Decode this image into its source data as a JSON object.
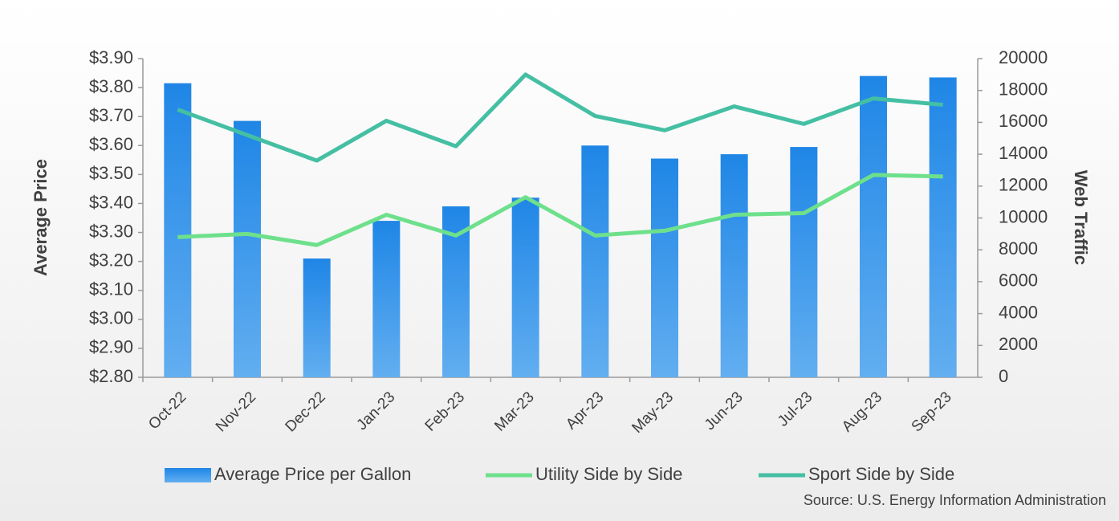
{
  "chart_data": {
    "type": "combo",
    "categories": [
      "Oct-22",
      "Nov-22",
      "Dec-22",
      "Jan-23",
      "Feb-23",
      "Mar-23",
      "Apr-23",
      "May-23",
      "Jun-23",
      "Jul-23",
      "Aug-23",
      "Sep-23"
    ],
    "series": [
      {
        "name": "Average Price per Gallon",
        "type": "bar",
        "color": "#2f8fe8",
        "values": [
          3.815,
          3.685,
          3.21,
          3.34,
          3.39,
          3.42,
          3.6,
          3.555,
          3.57,
          3.595,
          3.84,
          3.835
        ]
      },
      {
        "name": "Utility Side by Side",
        "type": "line",
        "axis": "y2",
        "color": "#6ee08c",
        "values": [
          8800,
          9000,
          8300,
          10200,
          8900,
          11300,
          8900,
          9200,
          10200,
          10300,
          12700,
          12600
        ]
      },
      {
        "name": "Sport Side by Side",
        "type": "line",
        "axis": "y2",
        "color": "#45bfa3",
        "values": [
          16800,
          15200,
          13600,
          16100,
          14500,
          19000,
          16400,
          15500,
          17000,
          15900,
          17500,
          17100
        ]
      }
    ],
    "y_label": "Average Price",
    "y2_label": "Web Traffic",
    "ylim": [
      2.8,
      3.9
    ],
    "yticks": [
      {
        "value": 2.8,
        "label": "$2.80"
      },
      {
        "value": 2.9,
        "label": "$2.90"
      },
      {
        "value": 3.0,
        "label": "$3.00"
      },
      {
        "value": 3.1,
        "label": "$3.10"
      },
      {
        "value": 3.2,
        "label": "$3.20"
      },
      {
        "value": 3.3,
        "label": "$3.30"
      },
      {
        "value": 3.4,
        "label": "$3.40"
      },
      {
        "value": 3.5,
        "label": "$3.50"
      },
      {
        "value": 3.6,
        "label": "$3.60"
      },
      {
        "value": 3.7,
        "label": "$3.70"
      },
      {
        "value": 3.8,
        "label": "$3.80"
      },
      {
        "value": 3.9,
        "label": "$3.90"
      }
    ],
    "y2lim": [
      0,
      20000
    ],
    "y2ticks": [
      0,
      2000,
      4000,
      6000,
      8000,
      10000,
      12000,
      14000,
      16000,
      18000,
      20000
    ],
    "source": "Source: U.S. Energy Information Administration",
    "legend": "bottom"
  }
}
